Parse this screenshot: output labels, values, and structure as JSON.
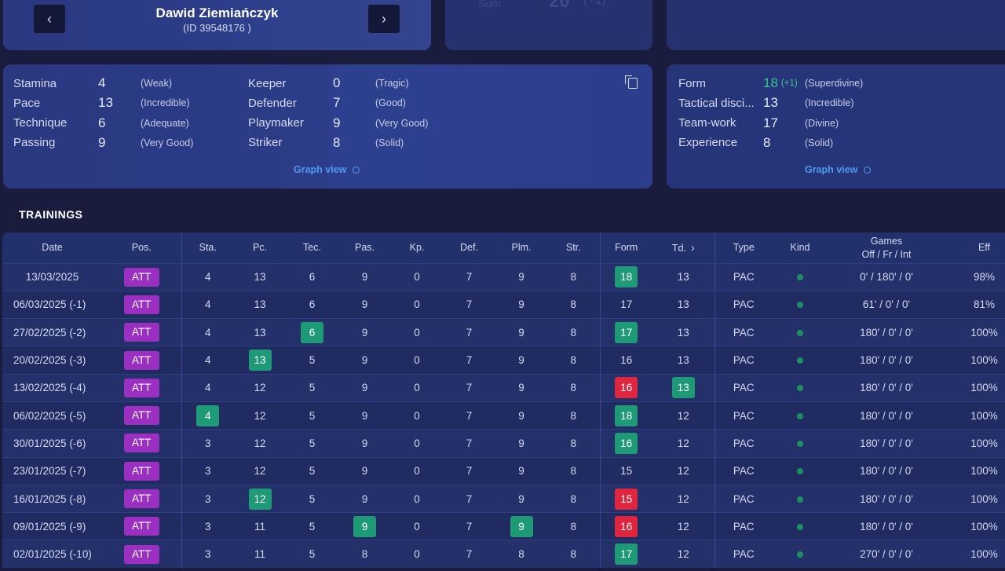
{
  "player": {
    "name": "Dawid Ziemiańczyk",
    "id_label": "(ID 39548176 )",
    "prev_icon": "chevron-left-icon",
    "next_icon": "chevron-right-icon"
  },
  "summary": {
    "label": "Sum",
    "value": "20",
    "delta": "(+1)"
  },
  "skills": {
    "physical": [
      {
        "name": "Stamina",
        "value": "4",
        "desc": "(Weak)"
      },
      {
        "name": "Pace",
        "value": "13",
        "desc": "(Incredible)"
      },
      {
        "name": "Technique",
        "value": "6",
        "desc": "(Adequate)"
      },
      {
        "name": "Passing",
        "value": "9",
        "desc": "(Very Good)"
      }
    ],
    "positional": [
      {
        "name": "Keeper",
        "value": "0",
        "desc": "(Tragic)"
      },
      {
        "name": "Defender",
        "value": "7",
        "desc": "(Good)"
      },
      {
        "name": "Playmaker",
        "value": "9",
        "desc": "(Very Good)"
      },
      {
        "name": "Striker",
        "value": "8",
        "desc": "(Solid)"
      }
    ],
    "graph_link": "Graph view"
  },
  "mental": {
    "rows": [
      {
        "name": "Form",
        "value": "18",
        "delta": "(+1)",
        "desc": "(Superdivine)"
      },
      {
        "name": "Tactical disci...",
        "value": "13",
        "delta": "",
        "desc": "(Incredible)"
      },
      {
        "name": "Team-work",
        "value": "17",
        "delta": "",
        "desc": "(Divine)"
      },
      {
        "name": "Experience",
        "value": "8",
        "delta": "",
        "desc": "(Solid)"
      }
    ],
    "graph_link": "Graph view"
  },
  "colors": {
    "background": "#1a1c3e",
    "card": "#2a3880",
    "accent_link": "#4d9bf0",
    "position_badge": "#9b2fc2",
    "highlight_up": "#1f9a77",
    "highlight_down": "#e0253e",
    "form_delta": "#3cc98f"
  },
  "trainings": {
    "title": "TRAININGS",
    "columns": [
      "Date",
      "Pos.",
      "Sta.",
      "Pc.",
      "Tec.",
      "Pas.",
      "Kp.",
      "Def.",
      "Plm.",
      "Str.",
      "Form",
      "Td.",
      "Type",
      "Kind",
      "Games",
      "Eff"
    ],
    "games_sub": "Off / Fr / Int",
    "rows": [
      {
        "date": "13/03/2025",
        "pos": "ATT",
        "sta": "4",
        "pc": "13",
        "tec": "6",
        "pas": "9",
        "kp": "0",
        "def": "7",
        "plm": "9",
        "str": "8",
        "form": "18",
        "td": "13",
        "type": "PAC",
        "games": "0' / 180' / 0'",
        "eff": "98%",
        "hl": {
          "form": "green"
        }
      },
      {
        "date": "06/03/2025 (-1)",
        "pos": "ATT",
        "sta": "4",
        "pc": "13",
        "tec": "6",
        "pas": "9",
        "kp": "0",
        "def": "7",
        "plm": "9",
        "str": "8",
        "form": "17",
        "td": "13",
        "type": "PAC",
        "games": "61' / 0' / 0'",
        "eff": "81%",
        "hl": {}
      },
      {
        "date": "27/02/2025 (-2)",
        "pos": "ATT",
        "sta": "4",
        "pc": "13",
        "tec": "6",
        "pas": "9",
        "kp": "0",
        "def": "7",
        "plm": "9",
        "str": "8",
        "form": "17",
        "td": "13",
        "type": "PAC",
        "games": "180' / 0' / 0'",
        "eff": "100%",
        "hl": {
          "tec": "green",
          "form": "green"
        }
      },
      {
        "date": "20/02/2025 (-3)",
        "pos": "ATT",
        "sta": "4",
        "pc": "13",
        "tec": "5",
        "pas": "9",
        "kp": "0",
        "def": "7",
        "plm": "9",
        "str": "8",
        "form": "16",
        "td": "13",
        "type": "PAC",
        "games": "180' / 0' / 0'",
        "eff": "100%",
        "hl": {
          "pc": "green"
        }
      },
      {
        "date": "13/02/2025 (-4)",
        "pos": "ATT",
        "sta": "4",
        "pc": "12",
        "tec": "5",
        "pas": "9",
        "kp": "0",
        "def": "7",
        "plm": "9",
        "str": "8",
        "form": "16",
        "td": "13",
        "type": "PAC",
        "games": "180' / 0' / 0'",
        "eff": "100%",
        "hl": {
          "form": "red",
          "td": "green"
        }
      },
      {
        "date": "06/02/2025 (-5)",
        "pos": "ATT",
        "sta": "4",
        "pc": "12",
        "tec": "5",
        "pas": "9",
        "kp": "0",
        "def": "7",
        "plm": "9",
        "str": "8",
        "form": "18",
        "td": "12",
        "type": "PAC",
        "games": "180' / 0' / 0'",
        "eff": "100%",
        "hl": {
          "sta": "green",
          "form": "green"
        }
      },
      {
        "date": "30/01/2025 (-6)",
        "pos": "ATT",
        "sta": "3",
        "pc": "12",
        "tec": "5",
        "pas": "9",
        "kp": "0",
        "def": "7",
        "plm": "9",
        "str": "8",
        "form": "16",
        "td": "12",
        "type": "PAC",
        "games": "180' / 0' / 0'",
        "eff": "100%",
        "hl": {
          "form": "green"
        }
      },
      {
        "date": "23/01/2025 (-7)",
        "pos": "ATT",
        "sta": "3",
        "pc": "12",
        "tec": "5",
        "pas": "9",
        "kp": "0",
        "def": "7",
        "plm": "9",
        "str": "8",
        "form": "15",
        "td": "12",
        "type": "PAC",
        "games": "180' / 0' / 0'",
        "eff": "100%",
        "hl": {}
      },
      {
        "date": "16/01/2025 (-8)",
        "pos": "ATT",
        "sta": "3",
        "pc": "12",
        "tec": "5",
        "pas": "9",
        "kp": "0",
        "def": "7",
        "plm": "9",
        "str": "8",
        "form": "15",
        "td": "12",
        "type": "PAC",
        "games": "180' / 0' / 0'",
        "eff": "100%",
        "hl": {
          "pc": "green",
          "form": "red"
        }
      },
      {
        "date": "09/01/2025 (-9)",
        "pos": "ATT",
        "sta": "3",
        "pc": "11",
        "tec": "5",
        "pas": "9",
        "kp": "0",
        "def": "7",
        "plm": "9",
        "str": "8",
        "form": "16",
        "td": "12",
        "type": "PAC",
        "games": "180' / 0' / 0'",
        "eff": "100%",
        "hl": {
          "pas": "green",
          "plm": "green",
          "form": "red"
        }
      },
      {
        "date": "02/01/2025 (-10)",
        "pos": "ATT",
        "sta": "3",
        "pc": "11",
        "tec": "5",
        "pas": "8",
        "kp": "0",
        "def": "7",
        "plm": "8",
        "str": "8",
        "form": "17",
        "td": "12",
        "type": "PAC",
        "games": "270' / 0' / 0'",
        "eff": "100%",
        "hl": {
          "form": "green"
        }
      }
    ]
  }
}
